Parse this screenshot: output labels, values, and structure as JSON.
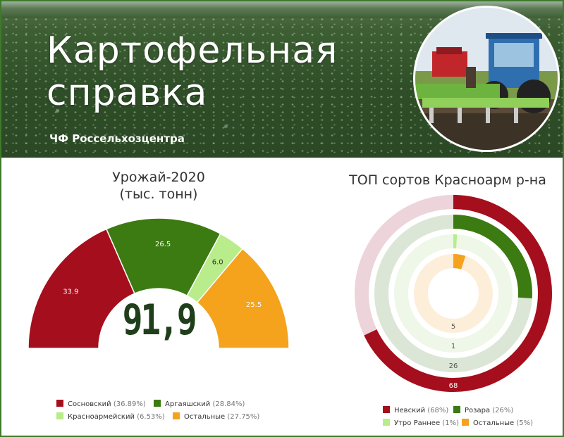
{
  "header": {
    "title_line1": "Картофельная",
    "title_line2": "справка",
    "subtitle": "ЧФ Россельхозцентра"
  },
  "colors": {
    "dark_red": "#a50e1c",
    "green": "#3c7a12",
    "light_green": "#b9ec8a",
    "orange": "#f5a21d",
    "pink_track": "#ecd4da",
    "green_track": "#dce6d6",
    "light_track": "#eef7e8",
    "orange_track": "#fdeeda"
  },
  "chart_data": [
    {
      "type": "pie",
      "variant": "half-donut",
      "title": "Урожай-2020",
      "subtitle": "(тыс. тонн)",
      "total_label": "91,9",
      "slices": [
        {
          "name": "Сосновский",
          "value": 33.9,
          "value_label": "33.9",
          "percent_label": "(36.89%)",
          "color": "#a50e1c"
        },
        {
          "name": "Аргаяшский",
          "value": 26.5,
          "value_label": "26.5",
          "percent_label": "(28.84%)",
          "color": "#3c7a12"
        },
        {
          "name": "Красноармейский",
          "value": 6.0,
          "value_label": "6.0",
          "percent_label": "(6.53%)",
          "color": "#b9ec8a"
        },
        {
          "name": "Остальные",
          "value": 25.5,
          "value_label": "25.5",
          "percent_label": "(27.75%)",
          "color": "#f5a21d"
        }
      ],
      "legend_position": "bottom"
    },
    {
      "type": "pie",
      "variant": "radial-bar",
      "title": "ТОП сортов Красноарм р-на",
      "max": 100,
      "series": [
        {
          "name": "Невский",
          "value": 68,
          "value_label": "68",
          "percent_label": "(68%)",
          "color": "#a50e1c",
          "track": "#ecd4da"
        },
        {
          "name": "Розара",
          "value": 26,
          "value_label": "26",
          "percent_label": "(26%)",
          "color": "#3c7a12",
          "track": "#dce6d6"
        },
        {
          "name": "Утро Раннее",
          "value": 1,
          "value_label": "1",
          "percent_label": "(1%)",
          "color": "#b9ec8a",
          "track": "#eef7e8"
        },
        {
          "name": "Остальные",
          "value": 5,
          "value_label": "5",
          "percent_label": "(5%)",
          "color": "#f5a21d",
          "track": "#fdeeda"
        }
      ],
      "legend_position": "bottom"
    }
  ]
}
